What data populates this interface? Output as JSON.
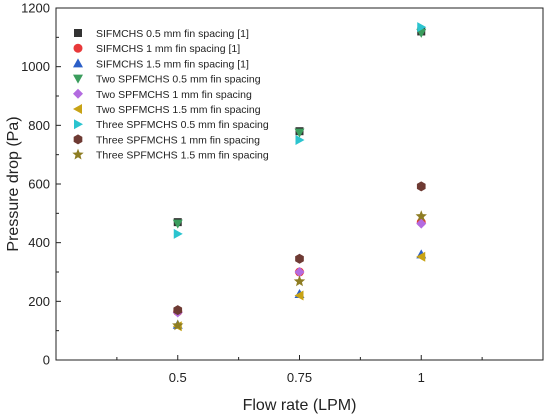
{
  "chart_data": {
    "type": "scatter",
    "xlabel": "Flow rate (LPM)",
    "ylabel": "Pressure drop (Pa)",
    "x_ticks": [
      "0.5",
      "0.75",
      "1"
    ],
    "y_ticks": [
      "0",
      "200",
      "400",
      "600",
      "800",
      "1000",
      "1200"
    ],
    "xlim": [
      0.25,
      1.25
    ],
    "ylim": [
      0,
      1200
    ],
    "grid": false,
    "legend_position": "top-left",
    "x": [
      0.5,
      0.75,
      1
    ],
    "series": [
      {
        "name": "SIFMCHS 0.5 mm fin spacing [1]",
        "marker": "square",
        "color": "#333333",
        "values": [
          470,
          780,
          1120
        ]
      },
      {
        "name": "SIFMCHS 1 mm fin spacing [1]",
        "marker": "circle",
        "color": "#e8393a",
        "values": [
          165,
          300,
          470
        ]
      },
      {
        "name": "SIFMCHS 1.5 mm fin spacing [1]",
        "marker": "triangle-up",
        "color": "#2c5fc8",
        "values": [
          120,
          225,
          360
        ]
      },
      {
        "name": "Two SPFMCHS 0.5 mm fin spacing",
        "marker": "triangle-down",
        "color": "#3b9d5d",
        "values": [
          465,
          775,
          1115
        ]
      },
      {
        "name": "Two SPFMCHS 1 mm fin spacing",
        "marker": "diamond",
        "color": "#b36be0",
        "values": [
          162,
          300,
          465
        ]
      },
      {
        "name": "Two SPFMCHS 1.5 mm fin spacing",
        "marker": "triangle-left",
        "color": "#c8a316",
        "values": [
          115,
          220,
          352
        ]
      },
      {
        "name": "Three SPFMCHS 0.5 mm fin spacing",
        "marker": "triangle-right",
        "color": "#2bc4cf",
        "values": [
          430,
          750,
          1135
        ]
      },
      {
        "name": "Three SPFMCHS 1 mm fin spacing",
        "marker": "hexagon",
        "color": "#6e3a33",
        "values": [
          170,
          345,
          592
        ]
      },
      {
        "name": "Three SPFMCHS 1.5 mm fin spacing",
        "marker": "star",
        "color": "#8e7d23",
        "values": [
          118,
          268,
          490
        ]
      }
    ]
  }
}
